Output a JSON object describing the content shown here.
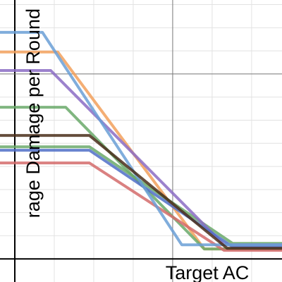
{
  "chart_data": {
    "type": "line",
    "x_label": "Target AC",
    "y_label": "rage Damage per Round",
    "xlim": [
      -0.375,
      6.77
    ],
    "ylim": [
      -1.0,
      11.2
    ],
    "xticks": [
      0,
      1,
      2,
      3,
      4,
      5,
      6
    ],
    "yticks": [
      0,
      1,
      2,
      3,
      4,
      5,
      6,
      7,
      8,
      9,
      10,
      11
    ],
    "major_xticks": [
      0,
      4
    ],
    "major_yticks": [
      0,
      8
    ],
    "grid": true,
    "series": [
      {
        "color": "#f2a05c",
        "x": [
          -0.5,
          1.09,
          4.8,
          7
        ],
        "values": [
          8.95,
          8.95,
          0.43,
          0.43
        ]
      },
      {
        "color": "#6aa96a",
        "x": [
          -0.5,
          1.29,
          4.8,
          7
        ],
        "values": [
          6.56,
          6.56,
          0.43,
          0.43
        ]
      },
      {
        "color": "#6aa96a",
        "x": [
          -0.5,
          1.89,
          5.52,
          7
        ],
        "values": [
          4.85,
          4.85,
          0.67,
          0.67
        ]
      },
      {
        "color": "#d36b6b",
        "x": [
          -0.5,
          1.89,
          5.3,
          7
        ],
        "values": [
          4.15,
          4.15,
          0.37,
          0.37
        ]
      },
      {
        "color": "#8b6cc4",
        "x": [
          -0.5,
          0.91,
          5.3,
          7
        ],
        "values": [
          8.15,
          8.15,
          0.61,
          0.61
        ]
      },
      {
        "color": "#4f6fc7",
        "x": [
          -0.5,
          1.89,
          5.52,
          7
        ],
        "values": [
          4.7,
          4.7,
          0.52,
          0.52
        ]
      },
      {
        "color": "#6a9fd6",
        "x": [
          -0.5,
          0.7,
          4.23,
          7
        ],
        "values": [
          9.8,
          9.8,
          0.61,
          0.61
        ]
      },
      {
        "color": "#4a2e1a",
        "x": [
          -0.5,
          1.89,
          5.38,
          7
        ],
        "values": [
          5.34,
          5.34,
          0.46,
          0.46
        ]
      }
    ]
  }
}
